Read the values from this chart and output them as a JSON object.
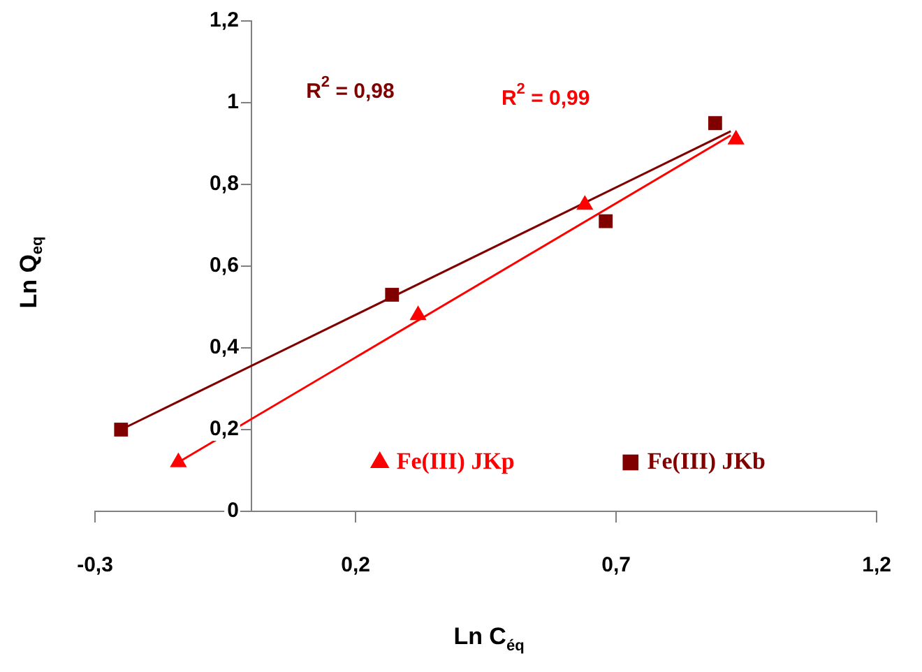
{
  "chart_data": {
    "type": "scatter",
    "xlabel": "Ln C$_{éq}$",
    "ylabel": "Ln Q$_{eq}$",
    "xlim": [
      -0.3,
      1.2
    ],
    "xticks": [
      {
        "value": -0.3,
        "label": "-0,3"
      },
      {
        "value": 0.2,
        "label": "0,2"
      },
      {
        "value": 0.7,
        "label": "0,7"
      },
      {
        "value": 1.2,
        "label": "1,2"
      }
    ],
    "ylim": [
      0,
      1.2
    ],
    "yticks": [
      0,
      {
        "value": 0.2,
        "label": "0,2"
      },
      {
        "value": 0.4,
        "label": "0,4"
      },
      {
        "value": 0.6,
        "label": "0,6"
      },
      {
        "value": 0.8,
        "label": "0,8"
      },
      1,
      {
        "value": 1.2,
        "label": "1,2"
      }
    ],
    "grid": false,
    "legend": "bottom",
    "series": [
      {
        "name": "Fe(III) JKp",
        "type": "scatter",
        "marker": "triangle",
        "color": "#ff0000",
        "x": [
          -0.14,
          0.32,
          0.64,
          0.93
        ],
        "values": [
          0.12,
          0.48,
          0.75,
          0.91
        ]
      },
      {
        "name": "Fe(III) JKb",
        "type": "scatter",
        "marker": "square",
        "color": "#800000",
        "x": [
          -0.25,
          0.27,
          0.68,
          0.89
        ],
        "values": [
          0.2,
          0.53,
          0.71,
          0.95
        ]
      },
      {
        "type": "line",
        "marker": "none",
        "color": "#ff0000",
        "x": [
          -0.14,
          0.92
        ],
        "values": [
          0.12,
          0.92
        ]
      },
      {
        "type": "line",
        "marker": "none",
        "color": "#800000",
        "x": [
          -0.25,
          0.92
        ],
        "values": [
          0.2,
          0.93
        ]
      }
    ],
    "annotations": [
      "R$^{2}$ = 0,99",
      "R$^{2}$ = 0,98"
    ]
  }
}
